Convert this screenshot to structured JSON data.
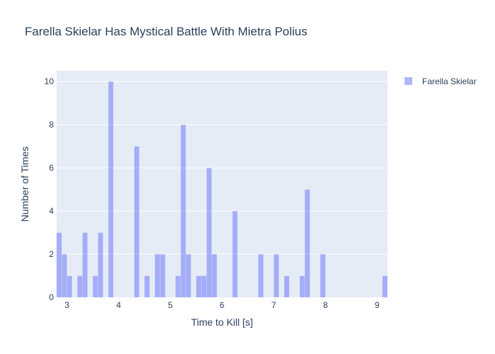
{
  "chart_data": {
    "type": "bar",
    "title": "Farella Skielar Has Mystical Battle With Mietra Polius",
    "xlabel": "Time to Kill [s]",
    "ylabel": "Number of Times",
    "xlim": [
      2.8,
      9.2
    ],
    "ylim": [
      0,
      10.5
    ],
    "bin_width": 0.1,
    "x_ticks": [
      3,
      4,
      5,
      6,
      7,
      8,
      9
    ],
    "y_ticks": [
      0,
      2,
      4,
      6,
      8,
      10
    ],
    "grid": true,
    "legend_position": "top-right",
    "colors": {
      "bar": "#636efa",
      "plot_bg": "#e5ecf6",
      "grid": "#ffffff",
      "text": "#2a3f5f"
    },
    "series": [
      {
        "name": "Farella Skielar",
        "x": [
          2.8,
          2.9,
          3.0,
          3.2,
          3.3,
          3.5,
          3.6,
          3.8,
          4.3,
          4.5,
          4.7,
          4.8,
          5.1,
          5.2,
          5.3,
          5.5,
          5.6,
          5.7,
          5.8,
          6.2,
          6.7,
          7.0,
          7.2,
          7.5,
          7.6,
          7.9,
          9.1
        ],
        "y": [
          3,
          2,
          1,
          1,
          3,
          1,
          3,
          10,
          7,
          1,
          2,
          2,
          1,
          8,
          2,
          1,
          1,
          6,
          2,
          4,
          2,
          2,
          1,
          1,
          5,
          2,
          1
        ]
      }
    ]
  }
}
